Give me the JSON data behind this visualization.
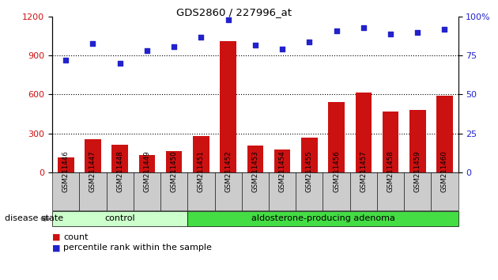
{
  "title": "GDS2860 / 227996_at",
  "categories": [
    "GSM211446",
    "GSM211447",
    "GSM211448",
    "GSM211449",
    "GSM211450",
    "GSM211451",
    "GSM211452",
    "GSM211453",
    "GSM211454",
    "GSM211455",
    "GSM211456",
    "GSM211457",
    "GSM211458",
    "GSM211459",
    "GSM211460"
  ],
  "bar_values": [
    115,
    255,
    215,
    135,
    165,
    280,
    1010,
    205,
    175,
    270,
    540,
    615,
    470,
    480,
    590
  ],
  "scatter_values": [
    72,
    83,
    70,
    78,
    81,
    87,
    98,
    82,
    79,
    84,
    91,
    93,
    89,
    90,
    92
  ],
  "bar_color": "#cc1111",
  "scatter_color": "#2222cc",
  "ylim_left": [
    0,
    1200
  ],
  "ylim_right": [
    0,
    100
  ],
  "yticks_left": [
    0,
    300,
    600,
    900,
    1200
  ],
  "yticks_right": [
    0,
    25,
    50,
    75,
    100
  ],
  "grid_lines": [
    300,
    600,
    900
  ],
  "control_count": 5,
  "adenoma_count": 10,
  "disease_state_label": "disease state",
  "control_label": "control",
  "adenoma_label": "aldosterone-producing adenoma",
  "legend_bar": "count",
  "legend_scatter": "percentile rank within the sample",
  "control_color": "#ccffcc",
  "adenoma_color": "#44dd44",
  "tick_bg_color": "#cccccc",
  "figsize": [
    6.3,
    3.54
  ],
  "dpi": 100
}
